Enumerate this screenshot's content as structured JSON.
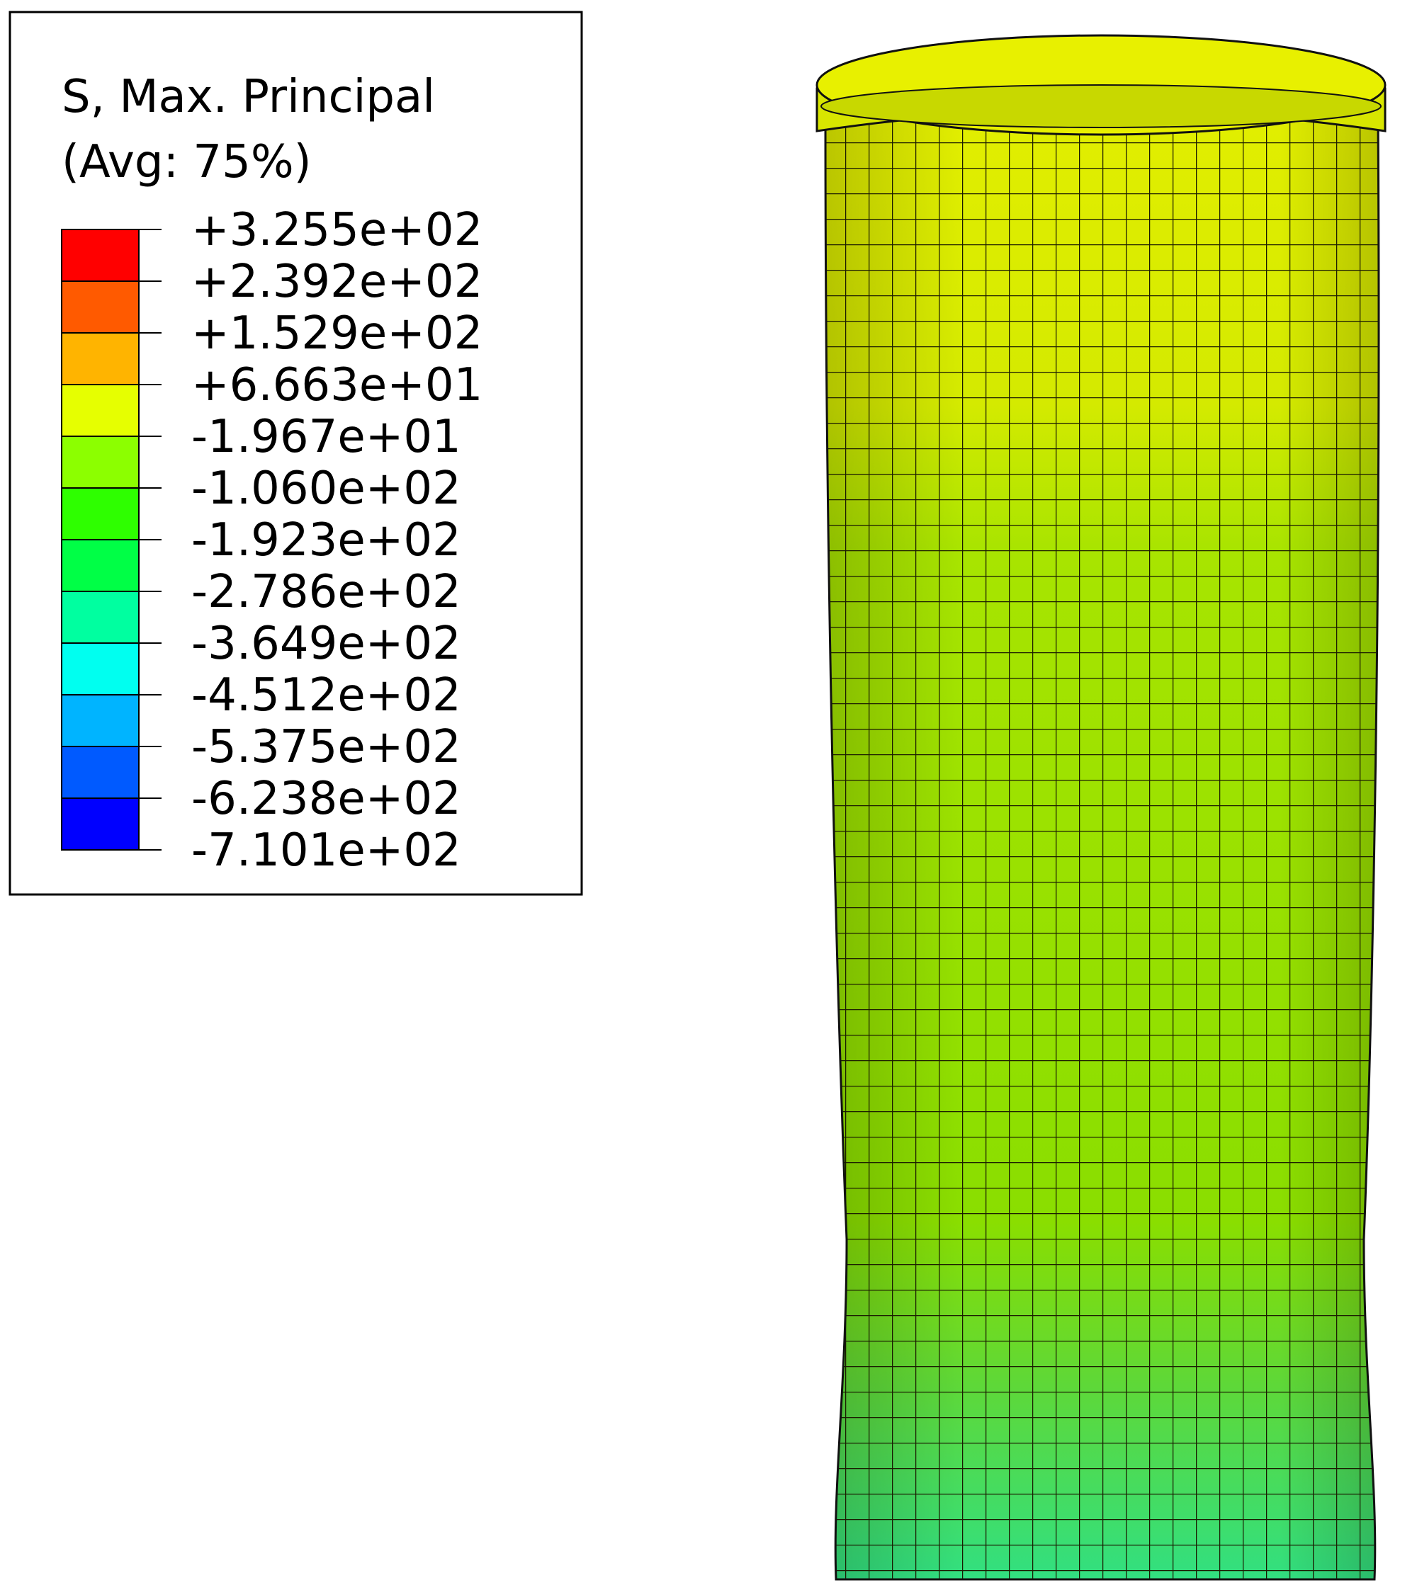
{
  "legend": {
    "title": "S, Max. Principal",
    "subtitle": "(Avg: 75%)",
    "labels": [
      "+3.255e+02",
      "+2.392e+02",
      "+1.529e+02",
      "+6.663e+01",
      "-1.967e+01",
      "-1.060e+02",
      "-1.923e+02",
      "-2.786e+02",
      "-3.649e+02",
      "-4.512e+02",
      "-5.375e+02",
      "-6.238e+02",
      "-7.101e+02"
    ]
  }
}
